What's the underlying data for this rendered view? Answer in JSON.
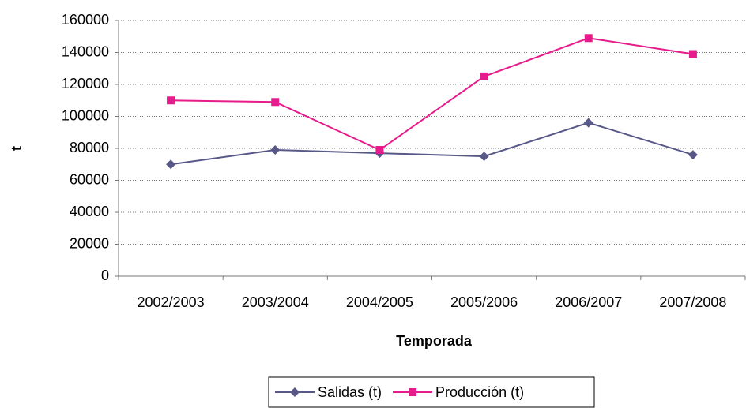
{
  "chart_data": {
    "type": "line",
    "categories": [
      "2002/2003",
      "2003/2004",
      "2004/2005",
      "2005/2006",
      "2006/2007",
      "2007/2008"
    ],
    "series": [
      {
        "name": "Salidas (t)",
        "color": "#585888",
        "marker": "diamond",
        "values": [
          70000,
          79000,
          77000,
          75000,
          96000,
          76000
        ]
      },
      {
        "name": "Producción (t)",
        "color": "#e61b8c",
        "marker": "square",
        "values": [
          110000,
          109000,
          79000,
          125000,
          149000,
          139000
        ]
      }
    ],
    "xlabel": "Temporada",
    "ylabel": "t",
    "ylim": [
      0,
      160000
    ],
    "yticks": [
      0,
      20000,
      40000,
      60000,
      80000,
      100000,
      120000,
      140000,
      160000
    ],
    "grid": true,
    "legend": "bottom"
  }
}
